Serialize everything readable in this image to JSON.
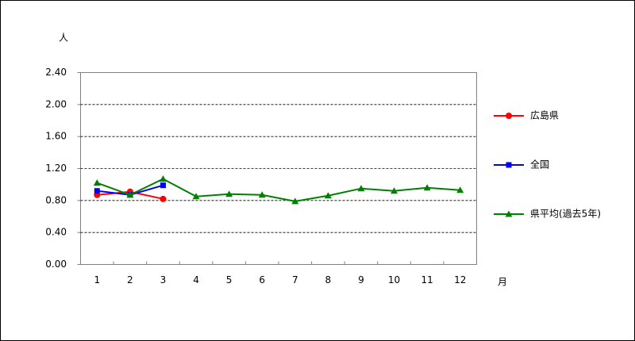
{
  "chart_data": {
    "type": "line",
    "y_label": "人",
    "x_label": "月",
    "categories": [
      "1",
      "2",
      "3",
      "4",
      "5",
      "6",
      "7",
      "8",
      "9",
      "10",
      "11",
      "12"
    ],
    "series": [
      {
        "name": "広島県",
        "color": "#ff0000",
        "marker": "circle",
        "values": [
          0.87,
          0.91,
          0.82,
          null,
          null,
          null,
          null,
          null,
          null,
          null,
          null,
          null
        ]
      },
      {
        "name": "全国",
        "color": "#0000ff",
        "marker": "square",
        "values": [
          0.92,
          0.87,
          0.99,
          null,
          null,
          null,
          null,
          null,
          null,
          null,
          null,
          null
        ]
      },
      {
        "name": "県平均(過去5年)",
        "color": "#008000",
        "marker": "triangle",
        "values": [
          1.02,
          0.87,
          1.07,
          0.85,
          0.88,
          0.87,
          0.79,
          0.86,
          0.95,
          0.92,
          0.96,
          0.93
        ]
      }
    ],
    "ylim": [
      0,
      2.4
    ],
    "yticks": [
      {
        "value": 0,
        "label": "0.00"
      },
      {
        "value": 0.4,
        "label": "0.40"
      },
      {
        "value": 0.8,
        "label": "0.80"
      },
      {
        "value": 1.2,
        "label": "1.20"
      },
      {
        "value": 1.6,
        "label": "1.60"
      },
      {
        "value": 2.0,
        "label": "2.00"
      },
      {
        "value": 2.4,
        "label": "2.40"
      }
    ],
    "grid": true
  }
}
